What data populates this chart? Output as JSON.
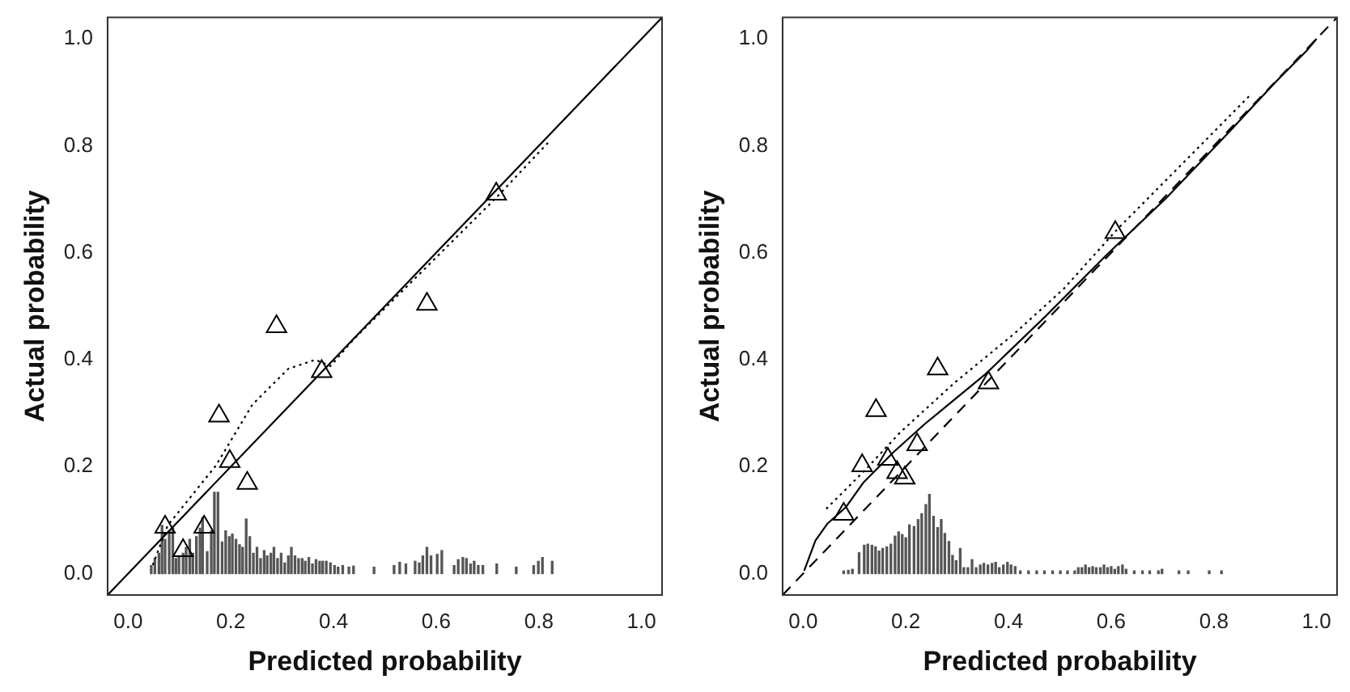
{
  "chart_data": [
    {
      "type": "scatter",
      "xlabel": "Predicted probability",
      "ylabel": "Actual probability",
      "legend": false,
      "grid": false,
      "xlim": [
        -0.04,
        1.04
      ],
      "ylim": [
        -0.04,
        1.04
      ],
      "xticks": [
        {
          "value": 0,
          "label": "0.0"
        },
        {
          "value": 0.2,
          "label": "0.2"
        },
        {
          "value": 0.4,
          "label": "0.4"
        },
        {
          "value": 0.6,
          "label": "0.6"
        },
        {
          "value": 0.8,
          "label": "0.8"
        },
        {
          "value": 1,
          "label": "1.0"
        }
      ],
      "yticks": [
        {
          "value": 0,
          "label": "0.0"
        },
        {
          "value": 0.2,
          "label": "0.2"
        },
        {
          "value": 0.4,
          "label": "0.4"
        },
        {
          "value": 0.6,
          "label": "0.6"
        },
        {
          "value": 0.8,
          "label": "0.8"
        },
        {
          "value": 1,
          "label": "1.0"
        }
      ],
      "series": [
        {
          "type": "bar",
          "color": "#555555",
          "x": [
            0.045,
            0.052,
            0.06,
            0.066,
            0.072,
            0.08,
            0.087,
            0.093,
            0.099,
            0.107,
            0.113,
            0.12,
            0.126,
            0.133,
            0.14,
            0.145,
            0.154,
            0.162,
            0.168,
            0.175,
            0.183,
            0.19,
            0.197,
            0.203,
            0.21,
            0.217,
            0.223,
            0.23,
            0.237,
            0.244,
            0.251,
            0.258,
            0.265,
            0.271,
            0.278,
            0.284,
            0.291,
            0.298,
            0.305,
            0.312,
            0.318,
            0.325,
            0.332,
            0.339,
            0.345,
            0.352,
            0.359,
            0.366,
            0.373,
            0.379,
            0.386,
            0.394,
            0.402,
            0.409,
            0.418,
            0.43,
            0.439,
            0.479,
            0.518,
            0.529,
            0.541,
            0.559,
            0.567,
            0.574,
            0.582,
            0.59,
            0.602,
            0.611,
            0.635,
            0.643,
            0.652,
            0.659,
            0.667,
            0.674,
            0.682,
            0.691,
            0.718,
            0.756,
            0.79,
            0.799,
            0.807,
            0.826
          ],
          "values": [
            0.015,
            0.028,
            0.038,
            0.09,
            0.064,
            0.08,
            0.085,
            0.028,
            0.03,
            0.038,
            0.049,
            0.064,
            0.038,
            0.069,
            0.085,
            0.105,
            0.041,
            0.08,
            0.152,
            0.152,
            0.059,
            0.08,
            0.069,
            0.074,
            0.064,
            0.054,
            0.049,
            0.102,
            0.069,
            0.038,
            0.049,
            0.028,
            0.043,
            0.033,
            0.038,
            0.049,
            0.028,
            0.038,
            0.02,
            0.033,
            0.049,
            0.033,
            0.028,
            0.028,
            0.023,
            0.03,
            0.018,
            0.026,
            0.023,
            0.023,
            0.023,
            0.02,
            0.015,
            0.012,
            0.015,
            0.012,
            0.014,
            0.012,
            0.015,
            0.021,
            0.018,
            0.023,
            0.02,
            0.033,
            0.049,
            0.033,
            0.036,
            0.043,
            0.015,
            0.026,
            0.03,
            0.028,
            0.018,
            0.023,
            0.015,
            0.015,
            0.018,
            0.012,
            0.015,
            0.023,
            0.03,
            0.023
          ]
        },
        {
          "type": "line",
          "color": "#000000",
          "line_style": "solid",
          "marker": "none",
          "x": [
            -0.04,
            1.04
          ],
          "values": [
            -0.04,
            1.04
          ]
        },
        {
          "type": "line",
          "color": "#000000",
          "line_style": "dotted",
          "marker": "none",
          "x": [
            0.048,
            0.077,
            0.171,
            0.242,
            0.312,
            0.365,
            0.394,
            0.441,
            0.582,
            0.717,
            0.823
          ],
          "values": [
            0.016,
            0.09,
            0.202,
            0.316,
            0.383,
            0.4,
            0.388,
            0.44,
            0.574,
            0.703,
            0.811
          ]
        },
        {
          "color": "#000000",
          "marker": "triangle",
          "x": [
            0.072,
            0.107,
            0.148,
            0.177,
            0.198,
            0.232,
            0.289,
            0.377,
            0.582,
            0.717
          ],
          "values": [
            0.087,
            0.043,
            0.087,
            0.295,
            0.21,
            0.169,
            0.462,
            0.378,
            0.504,
            0.71
          ]
        }
      ]
    },
    {
      "type": "scatter",
      "xlabel": "Predicted probability",
      "ylabel": "Actual probability",
      "legend": false,
      "grid": false,
      "xlim": [
        -0.04,
        1.04
      ],
      "ylim": [
        -0.04,
        1.04
      ],
      "xticks": [
        {
          "value": 0,
          "label": "0.0"
        },
        {
          "value": 0.2,
          "label": "0.2"
        },
        {
          "value": 0.4,
          "label": "0.4"
        },
        {
          "value": 0.6,
          "label": "0.6"
        },
        {
          "value": 0.8,
          "label": "0.8"
        },
        {
          "value": 1,
          "label": "1.0"
        }
      ],
      "yticks": [
        {
          "value": 0,
          "label": "0.0"
        },
        {
          "value": 0.2,
          "label": "0.2"
        },
        {
          "value": 0.4,
          "label": "0.4"
        },
        {
          "value": 0.6,
          "label": "0.6"
        },
        {
          "value": 0.8,
          "label": "0.8"
        },
        {
          "value": 1,
          "label": "1.0"
        }
      ],
      "series": [
        {
          "type": "bar",
          "color": "#555555",
          "x": [
            0.079,
            0.088,
            0.096,
            0.109,
            0.119,
            0.126,
            0.134,
            0.141,
            0.148,
            0.155,
            0.163,
            0.171,
            0.179,
            0.186,
            0.193,
            0.2,
            0.207,
            0.216,
            0.224,
            0.231,
            0.239,
            0.246,
            0.254,
            0.262,
            0.269,
            0.276,
            0.284,
            0.291,
            0.298,
            0.306,
            0.313,
            0.321,
            0.329,
            0.337,
            0.345,
            0.352,
            0.36,
            0.368,
            0.375,
            0.382,
            0.39,
            0.398,
            0.405,
            0.413,
            0.423,
            0.439,
            0.455,
            0.47,
            0.486,
            0.501,
            0.515,
            0.529,
            0.536,
            0.543,
            0.55,
            0.557,
            0.564,
            0.571,
            0.579,
            0.586,
            0.593,
            0.6,
            0.607,
            0.614,
            0.622,
            0.629,
            0.645,
            0.661,
            0.675,
            0.692,
            0.699,
            0.732,
            0.75,
            0.791,
            0.815
          ],
          "values": [
            0.005,
            0.006,
            0.008,
            0.039,
            0.053,
            0.055,
            0.053,
            0.05,
            0.042,
            0.047,
            0.05,
            0.055,
            0.07,
            0.078,
            0.073,
            0.067,
            0.091,
            0.088,
            0.101,
            0.112,
            0.129,
            0.148,
            0.107,
            0.086,
            0.101,
            0.075,
            0.06,
            0.034,
            0.024,
            0.047,
            0.011,
            0.011,
            0.026,
            0.011,
            0.016,
            0.019,
            0.016,
            0.019,
            0.021,
            0.011,
            0.016,
            0.021,
            0.016,
            0.013,
            0.005,
            0.005,
            0.005,
            0.005,
            0.005,
            0.005,
            0.005,
            0.005,
            0.011,
            0.011,
            0.016,
            0.011,
            0.013,
            0.011,
            0.011,
            0.016,
            0.011,
            0.013,
            0.008,
            0.013,
            0.016,
            0.008,
            0.005,
            0.005,
            0.005,
            0.005,
            0.008,
            0.005,
            0.005,
            0.005,
            0.005
          ]
        },
        {
          "type": "line",
          "color": "#000000",
          "line_style": "dashed",
          "marker": "none",
          "x": [
            -0.04,
            1.04
          ],
          "values": [
            -0.04,
            1.04
          ]
        },
        {
          "type": "line",
          "color": "#000000",
          "line_style": "dotted",
          "marker": "none",
          "x": [
            0.045,
            0.118,
            0.189,
            0.295,
            0.413,
            0.508,
            0.614,
            0.732,
            0.871
          ],
          "values": [
            0.121,
            0.191,
            0.264,
            0.357,
            0.45,
            0.533,
            0.646,
            0.76,
            0.895
          ]
        },
        {
          "type": "line",
          "color": "#000000",
          "line_style": "solid",
          "marker": "none",
          "x": [
            0.002,
            0.024,
            0.047,
            0.083,
            0.118,
            0.177,
            0.236,
            0.354,
            0.472,
            0.59,
            0.708,
            0.826,
            0.921,
            0.98,
            1.0
          ],
          "values": [
            0.005,
            0.062,
            0.093,
            0.124,
            0.171,
            0.228,
            0.279,
            0.372,
            0.481,
            0.595,
            0.703,
            0.822,
            0.92,
            0.977,
            1.0
          ]
        },
        {
          "color": "#000000",
          "marker": "triangle",
          "x": [
            0.079,
            0.115,
            0.142,
            0.165,
            0.183,
            0.198,
            0.222,
            0.262,
            0.361,
            0.608
          ],
          "values": [
            0.111,
            0.202,
            0.305,
            0.214,
            0.189,
            0.179,
            0.241,
            0.383,
            0.357,
            0.638
          ]
        }
      ]
    }
  ]
}
